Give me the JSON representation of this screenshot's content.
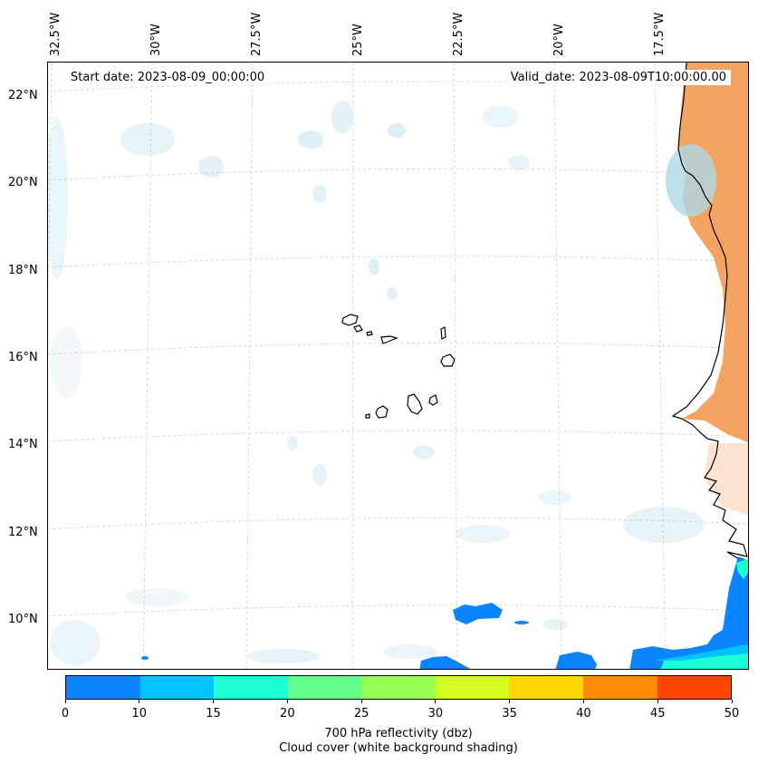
{
  "map": {
    "longitude_labels": [
      "32.5°W",
      "30°W",
      "27.5°W",
      "25°W",
      "22.5°W",
      "20°W",
      "17.5°W"
    ],
    "latitude_labels": [
      "22°N",
      "20°N",
      "18°N",
      "16°N",
      "14°N",
      "12°N",
      "10°N"
    ],
    "start_date": "Start date: 2023-08-09_00:00:00",
    "valid_date": "Valid_date: 2023-08-09T10:00:00.00",
    "colors": {
      "cloud_cover": "#add8e6",
      "land_shading": "#f4a460",
      "coastline": "#000000",
      "gridlines": "#cccccc",
      "reflectivity_low": "#0a84ff"
    }
  },
  "colorbar": {
    "tick_labels": [
      "0",
      "10",
      "15",
      "20",
      "25",
      "30",
      "35",
      "40",
      "45",
      "50"
    ],
    "colors": [
      "#0a84ff",
      "#00c3ff",
      "#1effd6",
      "#63ff8c",
      "#96ff52",
      "#d4ff1e",
      "#ffd700",
      "#ff8c00",
      "#ff4500"
    ],
    "label_line1": "700 hPa reflectivity (dbz)",
    "label_line2": "Cloud cover (white background shading)"
  }
}
